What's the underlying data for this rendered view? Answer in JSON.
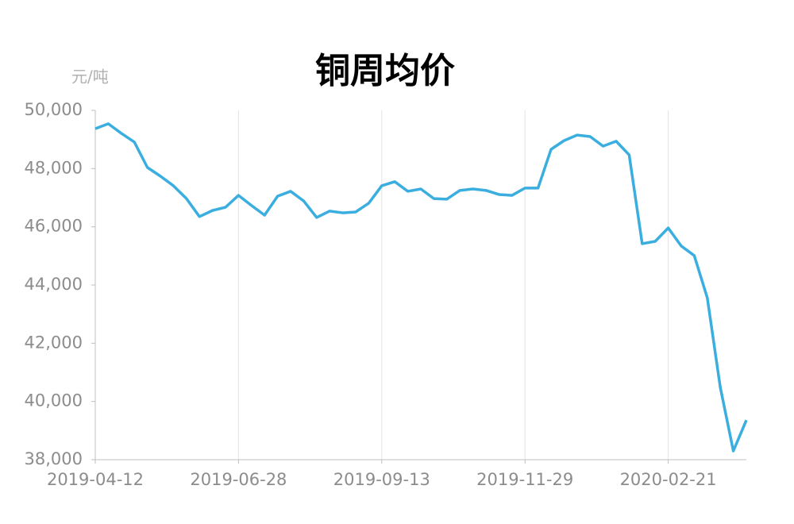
{
  "chart_data": {
    "type": "line",
    "title": "铜周均价",
    "y_label": "元/吨",
    "categories": [
      "2019-04-12",
      null,
      null,
      null,
      null,
      null,
      null,
      null,
      null,
      null,
      null,
      "2019-06-28",
      null,
      null,
      null,
      null,
      null,
      null,
      null,
      null,
      null,
      null,
      "2019-09-13",
      null,
      null,
      null,
      null,
      null,
      null,
      null,
      null,
      null,
      null,
      "2019-11-29",
      null,
      null,
      null,
      null,
      null,
      null,
      null,
      null,
      null,
      null,
      "2020-02-21",
      null,
      null,
      null,
      null,
      null,
      null
    ],
    "series": [
      {
        "name": "铜周均价",
        "color": "#3baee0",
        "values": [
          49370,
          49540,
          49210,
          48910,
          48040,
          47740,
          47410,
          46970,
          46350,
          46560,
          46670,
          47080,
          46730,
          46400,
          47050,
          47220,
          46890,
          46320,
          46540,
          46480,
          46510,
          46810,
          47410,
          47550,
          47220,
          47300,
          46970,
          46950,
          47250,
          47300,
          47250,
          47110,
          47080,
          47330,
          47330,
          48660,
          48960,
          49150,
          49100,
          48770,
          48940,
          48470,
          45420,
          45500,
          45960,
          45340,
          45010,
          43560,
          40480,
          38300,
          39360
        ]
      }
    ],
    "ylim": [
      38000,
      50000
    ],
    "yticks": [
      {
        "value": 38000,
        "label": "38,000"
      },
      {
        "value": 40000,
        "label": "40,000"
      },
      {
        "value": 42000,
        "label": "42,000"
      },
      {
        "value": 44000,
        "label": "44,000"
      },
      {
        "value": 46000,
        "label": "46,000"
      },
      {
        "value": 48000,
        "label": "48,000"
      },
      {
        "value": 50000,
        "label": "50,000"
      }
    ],
    "grid": true
  }
}
